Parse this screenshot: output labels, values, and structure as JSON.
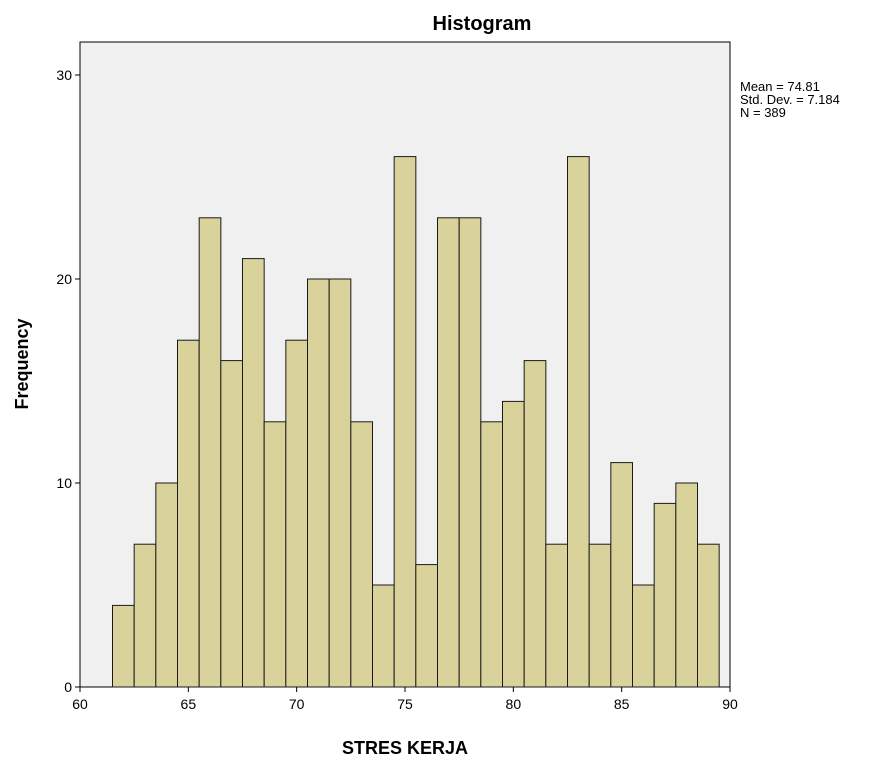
{
  "chart_data": {
    "type": "bar",
    "title": "Histogram",
    "xlabel": "STRES KERJA",
    "ylabel": "Frequency",
    "xlim": [
      60,
      90
    ],
    "ylim": [
      0,
      30
    ],
    "x_ticks": [
      "60",
      "65",
      "70",
      "75",
      "80",
      "85",
      "90"
    ],
    "y_ticks": [
      "0",
      "10",
      "20",
      "30"
    ],
    "bin_width": 1,
    "bin_centers": [
      62,
      63,
      64,
      65,
      66,
      67,
      68,
      69,
      70,
      71,
      72,
      73,
      74,
      75,
      76,
      77,
      78,
      79,
      80,
      81,
      82,
      83,
      84,
      85,
      86,
      87,
      88,
      89
    ],
    "values": [
      4,
      7,
      10,
      17,
      23,
      16,
      21,
      13,
      17,
      20,
      20,
      13,
      5,
      26,
      6,
      23,
      23,
      13,
      14,
      16,
      7,
      26,
      7,
      11,
      5,
      9,
      10,
      7
    ],
    "grid": false,
    "plot_background": "#f0f0f0",
    "bar_color": "#d9d29a",
    "stats": {
      "mean": "Mean = 74.81",
      "std_dev": "Std. Dev. = 7.184",
      "n": "N = 389"
    }
  }
}
